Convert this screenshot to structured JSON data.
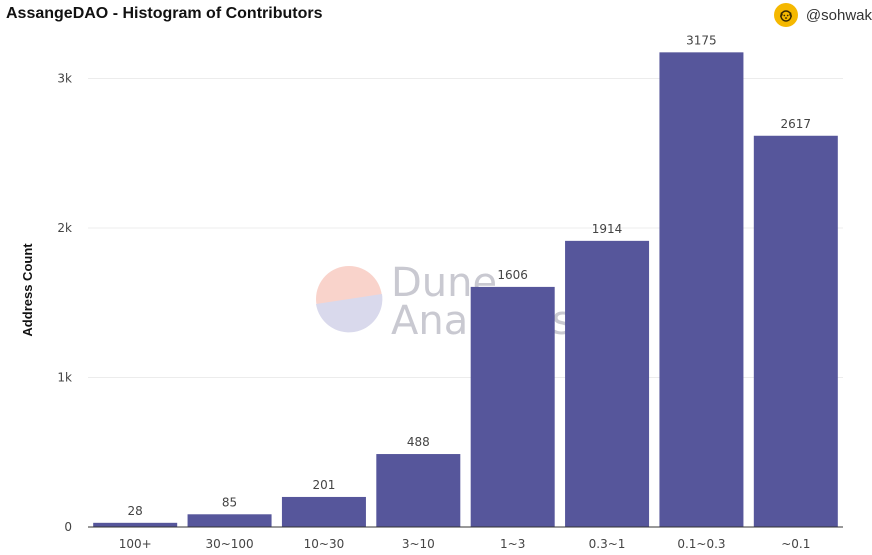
{
  "header": {
    "title": "AssangeDAO - Histogram of Contributors",
    "author": "@sohwak",
    "avatar_icon": "dog-face-icon",
    "avatar_color": "#f5b800"
  },
  "watermark": {
    "line1": "Dune",
    "line2": "Analytics"
  },
  "chart_data": {
    "type": "bar",
    "categories": [
      "100+",
      "30~100",
      "10~30",
      "3~10",
      "1~3",
      "0.3~1",
      "0.1~0.3",
      "~0.1"
    ],
    "values": [
      28,
      85,
      201,
      488,
      1606,
      1914,
      3175,
      2617
    ],
    "ylabel": "Address Count",
    "xlabel": "",
    "ylim": [
      0,
      3250
    ],
    "yticks": [
      0,
      1000,
      2000,
      3000
    ],
    "ytick_labels": [
      "0",
      "1k",
      "2k",
      "3k"
    ],
    "grid": true,
    "bar_color": "#56569b"
  }
}
